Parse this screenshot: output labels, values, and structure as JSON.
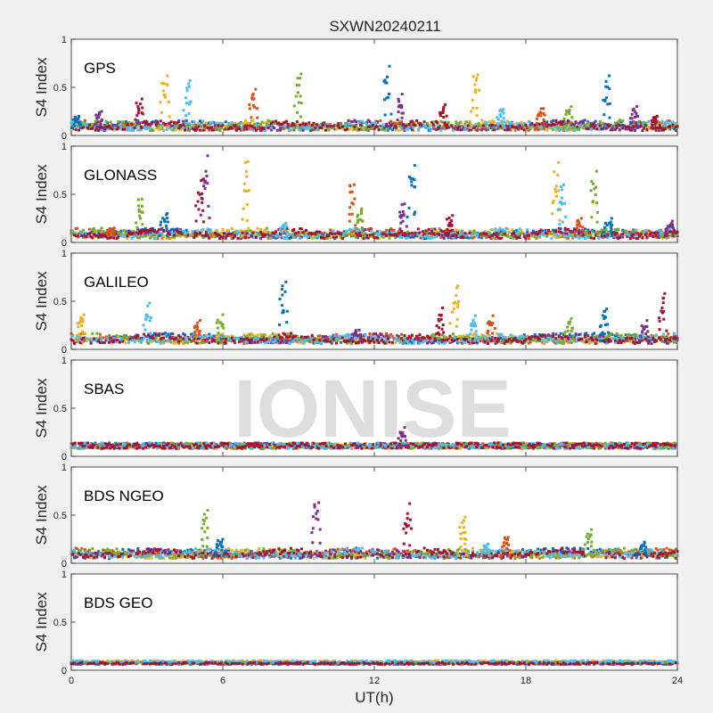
{
  "title": "SXWN20240211",
  "watermark": "IONISE",
  "xlabel": "UT(h)",
  "x_ticks": [
    "0",
    "6",
    "12",
    "18",
    "24"
  ],
  "y_ticks": [
    "0",
    "0.5",
    "1"
  ],
  "colors": {
    "figure_bg": "#f0f0f0",
    "axes_bg": "#ffffff",
    "axis_line": "#262626",
    "watermark": "#d9d9d9",
    "series": [
      "#0072BD",
      "#D95319",
      "#EDB120",
      "#7E2F8E",
      "#77AC30",
      "#4DBEEE",
      "#A2142F"
    ]
  },
  "chart_data": [
    {
      "type": "scatter",
      "label": "GPS",
      "ylabel": "S4 Index",
      "xlim": [
        0,
        24
      ],
      "ylim": [
        0,
        1
      ],
      "baseline": 0.08,
      "spikes": [
        [
          0.3,
          0.2
        ],
        [
          1.2,
          0.25
        ],
        [
          2.8,
          0.38
        ],
        [
          3.8,
          0.62
        ],
        [
          4.7,
          0.57
        ],
        [
          7.3,
          0.48
        ],
        [
          9.1,
          0.64
        ],
        [
          12.6,
          0.72
        ],
        [
          13.1,
          0.43
        ],
        [
          14.8,
          0.32
        ],
        [
          16.1,
          0.63
        ],
        [
          17.1,
          0.27
        ],
        [
          18.7,
          0.28
        ],
        [
          19.8,
          0.3
        ],
        [
          21.3,
          0.62
        ],
        [
          22.4,
          0.3
        ],
        [
          23.2,
          0.2
        ]
      ]
    },
    {
      "type": "scatter",
      "label": "GLONASS",
      "ylabel": "S4 Index",
      "xlim": [
        0,
        24
      ],
      "ylim": [
        0,
        1
      ],
      "baseline": 0.07,
      "spikes": [
        [
          1.7,
          0.15
        ],
        [
          2.8,
          0.45
        ],
        [
          3.8,
          0.3
        ],
        [
          5.4,
          0.9
        ],
        [
          5.2,
          0.65
        ],
        [
          7.0,
          0.84
        ],
        [
          8.5,
          0.2
        ],
        [
          11.2,
          0.6
        ],
        [
          11.5,
          0.35
        ],
        [
          13.6,
          0.8
        ],
        [
          13.2,
          0.4
        ],
        [
          15.1,
          0.28
        ],
        [
          19.3,
          0.83
        ],
        [
          19.5,
          0.6
        ],
        [
          20.2,
          0.25
        ],
        [
          20.8,
          0.74
        ],
        [
          21.4,
          0.25
        ],
        [
          23.8,
          0.22
        ]
      ]
    },
    {
      "type": "scatter",
      "label": "GALILEO",
      "ylabel": "S4 Index",
      "xlim": [
        0,
        24
      ],
      "ylim": [
        0,
        1
      ],
      "baseline": 0.09,
      "spikes": [
        [
          0.5,
          0.36
        ],
        [
          3.1,
          0.48
        ],
        [
          5.1,
          0.3
        ],
        [
          6.0,
          0.36
        ],
        [
          8.5,
          0.7
        ],
        [
          11.4,
          0.2
        ],
        [
          14.7,
          0.43
        ],
        [
          15.3,
          0.66
        ],
        [
          16.0,
          0.35
        ],
        [
          16.7,
          0.35
        ],
        [
          19.8,
          0.32
        ],
        [
          21.2,
          0.42
        ],
        [
          22.8,
          0.3
        ],
        [
          23.5,
          0.58
        ]
      ]
    },
    {
      "type": "scatter",
      "label": "SBAS",
      "ylabel": "S4 Index",
      "xlim": [
        0,
        24
      ],
      "ylim": [
        0,
        1
      ],
      "baseline": 0.11,
      "spikes": [
        [
          13.2,
          0.3
        ]
      ]
    },
    {
      "type": "scatter",
      "label": "BDS NGEO",
      "ylabel": "S4 Index",
      "xlim": [
        0,
        24
      ],
      "ylim": [
        0,
        1
      ],
      "baseline": 0.08,
      "spikes": [
        [
          5.4,
          0.55
        ],
        [
          6.0,
          0.25
        ],
        [
          9.8,
          0.63
        ],
        [
          13.4,
          0.62
        ],
        [
          15.6,
          0.48
        ],
        [
          16.5,
          0.2
        ],
        [
          17.3,
          0.27
        ],
        [
          20.6,
          0.35
        ],
        [
          22.7,
          0.22
        ]
      ]
    },
    {
      "type": "scatter",
      "label": "BDS GEO",
      "ylabel": "S4 Index",
      "xlim": [
        0,
        24
      ],
      "ylim": [
        0,
        1
      ],
      "baseline": 0.08,
      "spikes": []
    }
  ]
}
